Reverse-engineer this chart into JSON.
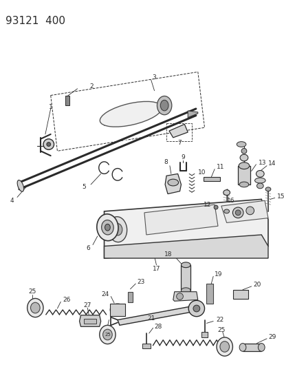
{
  "title": "93121  400",
  "bg_color": "#ffffff",
  "line_color": "#2a2a2a",
  "title_fontsize": 11,
  "label_fontsize": 6.5,
  "fig_width": 4.14,
  "fig_height": 5.33,
  "dpi": 100
}
